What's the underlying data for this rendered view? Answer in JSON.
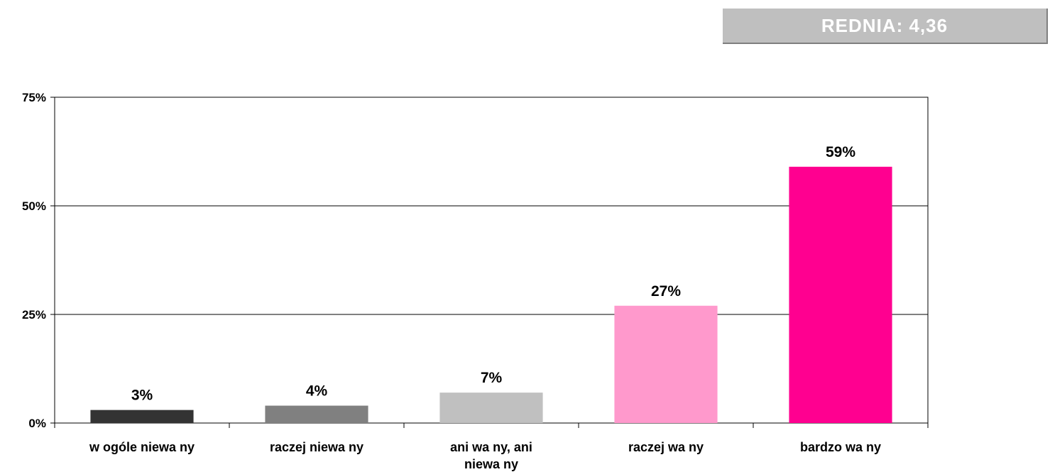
{
  "summary": {
    "label": "REDNIA:",
    "value": "4,36"
  },
  "colors": {
    "background": "#ffffff",
    "summary_box": "#bfbfbf",
    "summary_text": "#ffffff"
  },
  "chart_data": {
    "type": "bar",
    "title": "",
    "xlabel": "",
    "ylabel": "",
    "categories": [
      [
        "w ogóle niewa ny"
      ],
      [
        "raczej niewa ny"
      ],
      [
        "ani wa ny, ani",
        "niewa ny"
      ],
      [
        "raczej wa ny"
      ],
      [
        "bardzo wa ny"
      ]
    ],
    "values": [
      3,
      4,
      7,
      27,
      59
    ],
    "value_labels": [
      "3%",
      "4%",
      "7%",
      "27%",
      "59%"
    ],
    "bar_colors": [
      "#333333",
      "#808080",
      "#c0c0c0",
      "#ff99cc",
      "#ff0090"
    ],
    "ylim": [
      0,
      75
    ],
    "yticks": [
      0,
      25,
      50,
      75
    ],
    "ytick_labels": [
      "0%",
      "25%",
      "50%",
      "75%"
    ],
    "grid": true,
    "legend": "none"
  }
}
